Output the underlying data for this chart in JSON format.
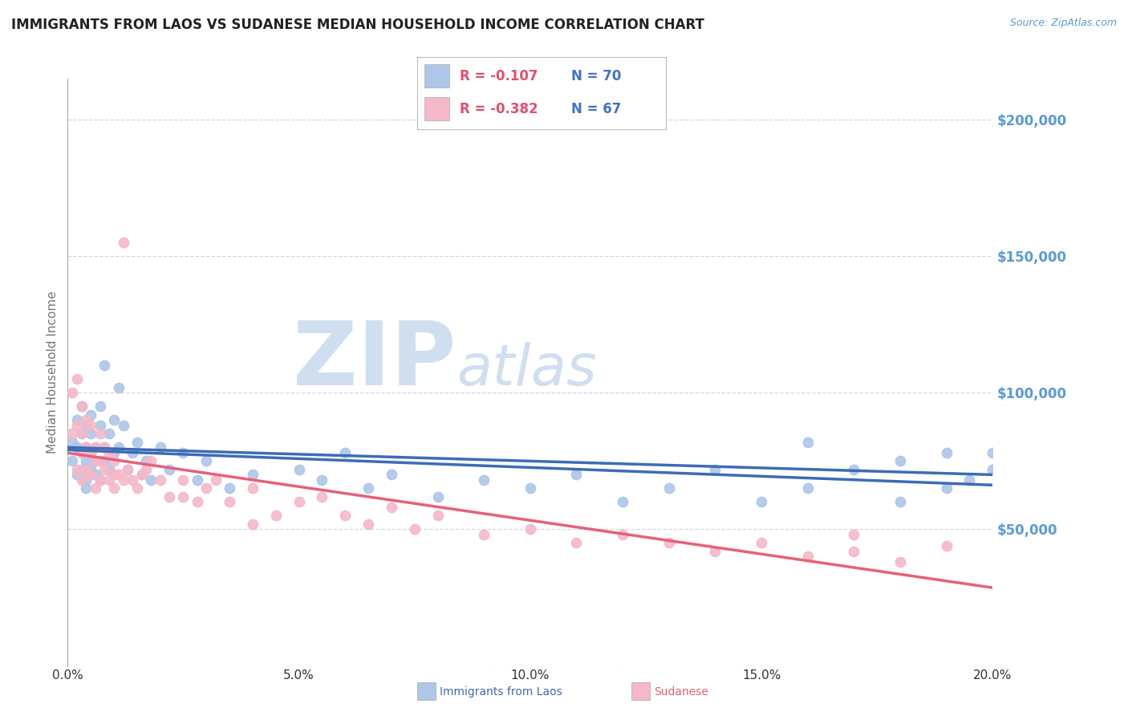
{
  "title": "IMMIGRANTS FROM LAOS VS SUDANESE MEDIAN HOUSEHOLD INCOME CORRELATION CHART",
  "source": "Source: ZipAtlas.com",
  "ylabel": "Median Household Income",
  "xlim": [
    0.0,
    0.2
  ],
  "ylim": [
    0,
    215000
  ],
  "yticks": [
    0,
    50000,
    100000,
    150000,
    200000
  ],
  "ytick_labels": [
    "",
    "$50,000",
    "$100,000",
    "$150,000",
    "$200,000"
  ],
  "xtick_labels": [
    "0.0%",
    "",
    "5.0%",
    "",
    "10.0%",
    "",
    "15.0%",
    "",
    "20.0%"
  ],
  "xticks": [
    0.0,
    0.025,
    0.05,
    0.075,
    0.1,
    0.125,
    0.15,
    0.175,
    0.2
  ],
  "series1_label": "Immigrants from Laos",
  "series2_label": "Sudanese",
  "series1_R": -0.107,
  "series1_N": 70,
  "series2_R": -0.382,
  "series2_N": 67,
  "series1_color": "#aec6e8",
  "series2_color": "#f5b8c8",
  "series1_line_color": "#3d6cb5",
  "series2_line_color": "#e8607a",
  "watermark_zip": "ZIP",
  "watermark_atlas": "atlas",
  "watermark_color": "#d0dff0",
  "background_color": "#ffffff",
  "title_fontsize": 12,
  "title_color": "#222222",
  "axis_label_color": "#777777",
  "tick_color_y": "#5b9bd5",
  "legend_R_color": "#e05070",
  "legend_N_color": "#4472c4",
  "grid_color": "#d0d8e0",
  "series1_x": [
    0.001,
    0.001,
    0.002,
    0.002,
    0.002,
    0.003,
    0.003,
    0.003,
    0.003,
    0.004,
    0.004,
    0.004,
    0.004,
    0.004,
    0.005,
    0.005,
    0.005,
    0.005,
    0.006,
    0.006,
    0.006,
    0.007,
    0.007,
    0.007,
    0.008,
    0.008,
    0.008,
    0.009,
    0.009,
    0.01,
    0.01,
    0.011,
    0.011,
    0.012,
    0.013,
    0.014,
    0.015,
    0.016,
    0.017,
    0.018,
    0.02,
    0.022,
    0.025,
    0.028,
    0.03,
    0.035,
    0.04,
    0.05,
    0.055,
    0.06,
    0.065,
    0.07,
    0.08,
    0.09,
    0.1,
    0.11,
    0.12,
    0.13,
    0.14,
    0.15,
    0.16,
    0.17,
    0.18,
    0.19,
    0.19,
    0.195,
    0.2,
    0.2,
    0.18,
    0.16
  ],
  "series1_y": [
    75000,
    82000,
    80000,
    70000,
    90000,
    85000,
    72000,
    78000,
    95000,
    80000,
    68000,
    88000,
    75000,
    65000,
    78000,
    85000,
    72000,
    92000,
    80000,
    70000,
    75000,
    88000,
    68000,
    95000,
    75000,
    110000,
    80000,
    72000,
    85000,
    78000,
    90000,
    80000,
    102000,
    88000,
    72000,
    78000,
    82000,
    70000,
    75000,
    68000,
    80000,
    72000,
    78000,
    68000,
    75000,
    65000,
    70000,
    72000,
    68000,
    78000,
    65000,
    70000,
    62000,
    68000,
    65000,
    70000,
    60000,
    65000,
    72000,
    60000,
    65000,
    72000,
    60000,
    65000,
    78000,
    68000,
    72000,
    78000,
    75000,
    82000
  ],
  "series2_x": [
    0.001,
    0.001,
    0.002,
    0.002,
    0.002,
    0.003,
    0.003,
    0.003,
    0.003,
    0.004,
    0.004,
    0.004,
    0.005,
    0.005,
    0.005,
    0.006,
    0.006,
    0.006,
    0.007,
    0.007,
    0.007,
    0.008,
    0.008,
    0.009,
    0.009,
    0.01,
    0.01,
    0.011,
    0.012,
    0.012,
    0.013,
    0.014,
    0.015,
    0.016,
    0.017,
    0.018,
    0.02,
    0.022,
    0.025,
    0.028,
    0.03,
    0.032,
    0.035,
    0.04,
    0.045,
    0.05,
    0.055,
    0.06,
    0.065,
    0.07,
    0.075,
    0.08,
    0.09,
    0.1,
    0.11,
    0.12,
    0.13,
    0.14,
    0.15,
    0.16,
    0.17,
    0.17,
    0.18,
    0.19,
    0.01,
    0.025,
    0.04
  ],
  "series2_y": [
    85000,
    100000,
    105000,
    88000,
    72000,
    95000,
    78000,
    85000,
    68000,
    90000,
    72000,
    80000,
    88000,
    70000,
    78000,
    80000,
    65000,
    75000,
    85000,
    68000,
    75000,
    72000,
    80000,
    68000,
    78000,
    75000,
    65000,
    70000,
    155000,
    68000,
    72000,
    68000,
    65000,
    70000,
    72000,
    75000,
    68000,
    62000,
    68000,
    60000,
    65000,
    68000,
    60000,
    65000,
    55000,
    60000,
    62000,
    55000,
    52000,
    58000,
    50000,
    55000,
    48000,
    50000,
    45000,
    48000,
    45000,
    42000,
    45000,
    40000,
    42000,
    48000,
    38000,
    44000,
    70000,
    62000,
    52000
  ]
}
